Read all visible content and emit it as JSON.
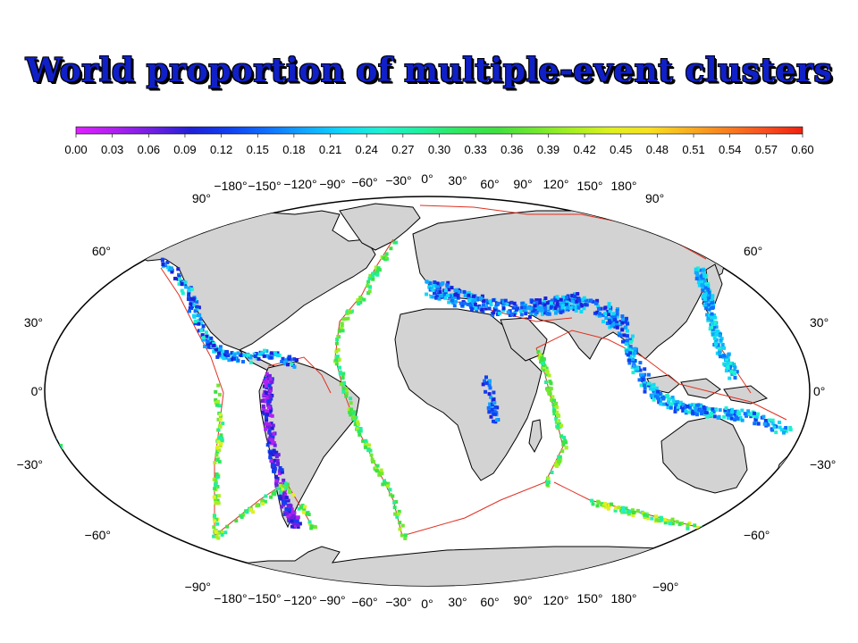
{
  "title": "World proportion of multiple-event clusters",
  "colorbar": {
    "ticks": [
      "0.00",
      "0.03",
      "0.06",
      "0.09",
      "0.12",
      "0.15",
      "0.18",
      "0.21",
      "0.24",
      "0.27",
      "0.30",
      "0.33",
      "0.36",
      "0.39",
      "0.42",
      "0.45",
      "0.48",
      "0.51",
      "0.54",
      "0.57",
      "0.60"
    ],
    "colors": [
      "#e020ff",
      "#b020f0",
      "#7020e0",
      "#2020d8",
      "#1040f0",
      "#1070ff",
      "#10a8ff",
      "#10d8f8",
      "#20f0d0",
      "#20f0a0",
      "#30e860",
      "#40e040",
      "#70e830",
      "#a8f020",
      "#e0f020",
      "#f8e020",
      "#f8b020",
      "#f88020",
      "#f85020",
      "#f02010"
    ]
  },
  "top_lon_labels": [
    "−180°",
    "−150°",
    "−120°",
    "−90°",
    "−60°",
    "−30°",
    "0°",
    "30°",
    "60°",
    "90°",
    "120°",
    "150°",
    "180°"
  ],
  "bottom_lon_labels": [
    "−180°",
    "−150°",
    "−120°",
    "−90°",
    "−60°",
    "−30°",
    "0°",
    "30°",
    "60°",
    "90°",
    "120°",
    "150°",
    "180°"
  ],
  "left_lat_labels": [
    "90°",
    "60°",
    "30°",
    "0°",
    "−30°",
    "−60°",
    "−90°"
  ],
  "right_lat_labels": [
    "90°",
    "60°",
    "30°",
    "0°",
    "−30°",
    "−60°",
    "−90°"
  ],
  "colors": {
    "land": "#d3d3d3",
    "coast": "#000000",
    "plate_boundary": "#e03020",
    "title": "#1020c8"
  }
}
